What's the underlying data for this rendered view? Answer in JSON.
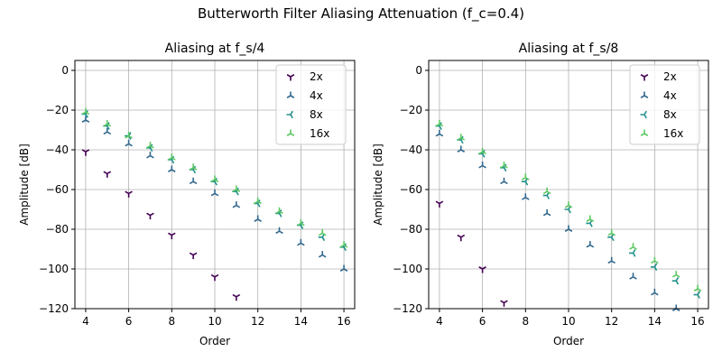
{
  "figure": {
    "suptitle": "Butterworth Filter Aliasing Attenuation (f_c=0.4)"
  },
  "chart_data": [
    {
      "type": "scatter",
      "title": "Aliasing at f_s/4",
      "xlabel": "Order",
      "ylabel": "Amplitude [dB]",
      "xlim": [
        3.5,
        16.5
      ],
      "ylim": [
        -120,
        5
      ],
      "xticks": [
        4,
        6,
        8,
        10,
        12,
        14,
        16
      ],
      "yticks": [
        0,
        -20,
        -40,
        -60,
        -80,
        -100,
        -120
      ],
      "grid": true,
      "legend_position": "top-right",
      "series": [
        {
          "name": "2x",
          "marker": "tri_down",
          "color": "#440154",
          "x": [
            4,
            5,
            6,
            7,
            8,
            9,
            10,
            11
          ],
          "y": [
            -41,
            -52,
            -62,
            -73,
            -83,
            -93,
            -104,
            -114
          ]
        },
        {
          "name": "4x",
          "marker": "tri_up",
          "color": "#31688e",
          "x": [
            4,
            5,
            6,
            7,
            8,
            9,
            10,
            11,
            12,
            13,
            14,
            15,
            16
          ],
          "y": [
            -25,
            -31,
            -37,
            -43,
            -50,
            -56,
            -62,
            -68,
            -75,
            -81,
            -87,
            -93,
            -100
          ]
        },
        {
          "name": "8x",
          "marker": "tri_left",
          "color": "#21918c",
          "x": [
            4,
            5,
            6,
            7,
            8,
            9,
            10,
            11,
            12,
            13,
            14,
            15,
            16
          ],
          "y": [
            -22,
            -28,
            -33,
            -39,
            -45,
            -50,
            -56,
            -61,
            -67,
            -72,
            -78,
            -84,
            -89
          ]
        },
        {
          "name": "16x",
          "marker": "tri_right",
          "color": "#5ec962",
          "x": [
            4,
            5,
            6,
            7,
            8,
            9,
            10,
            11,
            12,
            13,
            14,
            15,
            16
          ],
          "y": [
            -21,
            -27,
            -33,
            -38,
            -44,
            -49,
            -55,
            -60,
            -66,
            -71,
            -77,
            -82,
            -88
          ]
        }
      ]
    },
    {
      "type": "scatter",
      "title": "Aliasing at f_s/8",
      "xlabel": "Order",
      "ylabel": "Amplitude [dB]",
      "xlim": [
        3.5,
        16.5
      ],
      "ylim": [
        -120,
        5
      ],
      "xticks": [
        4,
        6,
        8,
        10,
        12,
        14,
        16
      ],
      "yticks": [
        0,
        -20,
        -40,
        -60,
        -80,
        -100,
        -120
      ],
      "grid": true,
      "legend_position": "top-right",
      "series": [
        {
          "name": "2x",
          "marker": "tri_down",
          "color": "#440154",
          "x": [
            4,
            5,
            6,
            7
          ],
          "y": [
            -67,
            -84,
            -100,
            -117
          ]
        },
        {
          "name": "4x",
          "marker": "tri_up",
          "color": "#31688e",
          "x": [
            4,
            5,
            6,
            7,
            8,
            9,
            10,
            11,
            12,
            13,
            14,
            15
          ],
          "y": [
            -32,
            -40,
            -48,
            -56,
            -64,
            -72,
            -80,
            -88,
            -96,
            -104,
            -112,
            -120
          ]
        },
        {
          "name": "8x",
          "marker": "tri_left",
          "color": "#21918c",
          "x": [
            4,
            5,
            6,
            7,
            8,
            9,
            10,
            11,
            12,
            13,
            14,
            15,
            16
          ],
          "y": [
            -28,
            -35,
            -42,
            -49,
            -56,
            -63,
            -70,
            -77,
            -84,
            -92,
            -99,
            -106,
            -113
          ]
        },
        {
          "name": "16x",
          "marker": "tri_right",
          "color": "#5ec962",
          "x": [
            4,
            5,
            6,
            7,
            8,
            9,
            10,
            11,
            12,
            13,
            14,
            15,
            16
          ],
          "y": [
            -27,
            -34,
            -41,
            -48,
            -54,
            -61,
            -68,
            -75,
            -82,
            -89,
            -96,
            -103,
            -110
          ]
        }
      ]
    }
  ]
}
